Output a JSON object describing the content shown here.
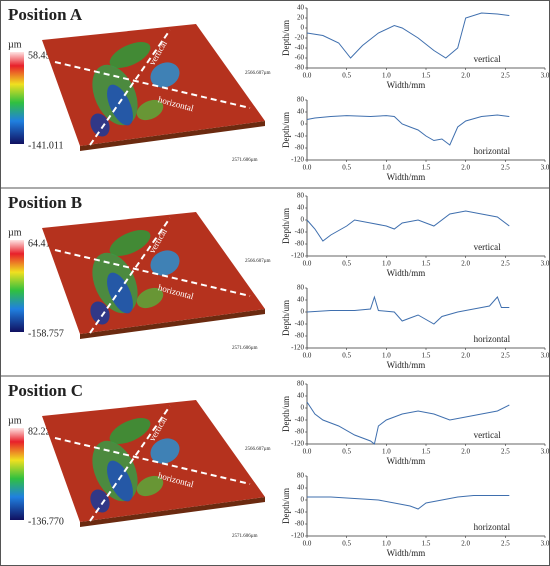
{
  "panels": [
    {
      "title": "Position A",
      "colorbar": {
        "unit": "µm",
        "max": "58.459",
        "min": "-141.011"
      },
      "surface_labels": [
        "2566.607µm",
        "2571.606µm"
      ],
      "cut_labels": [
        "vertical",
        "horizontal"
      ]
    },
    {
      "title": "Position B",
      "colorbar": {
        "unit": "µm",
        "max": "64.416",
        "min": "-158.757"
      },
      "surface_labels": [
        "2566.607µm",
        "2571.606µm"
      ],
      "cut_labels": [
        "vertical",
        "horizontal"
      ]
    },
    {
      "title": "Position C",
      "colorbar": {
        "unit": "µm",
        "max": "82.223",
        "min": "-136.770"
      },
      "surface_labels": [
        "2566.607µm",
        "2571.606µm"
      ],
      "cut_labels": [
        "vertical",
        "horizontal"
      ]
    }
  ],
  "chart_data": [
    {
      "type": "line",
      "annotation": "vertical",
      "xlabel": "Width/mm",
      "ylabel": "Depth/um",
      "color": "#3f6fae",
      "x": [
        0,
        0.2,
        0.4,
        0.55,
        0.7,
        0.9,
        1.1,
        1.2,
        1.4,
        1.6,
        1.75,
        1.9,
        2.0,
        2.2,
        2.4,
        2.55
      ],
      "values": [
        -10,
        -15,
        -30,
        -60,
        -35,
        -10,
        5,
        0,
        -20,
        -45,
        -60,
        -40,
        20,
        30,
        28,
        25
      ],
      "xlim": [
        0,
        3
      ],
      "xticks": [
        {
          "value": 0,
          "label": "0.0"
        },
        {
          "value": 0.5,
          "label": "0.5"
        },
        {
          "value": 1,
          "label": "1.0"
        },
        {
          "value": 1.5,
          "label": "1.5"
        },
        {
          "value": 2,
          "label": "2.0"
        },
        {
          "value": 2.5,
          "label": "2.5"
        },
        {
          "value": 3,
          "label": "3.0"
        }
      ],
      "ylim": [
        -80,
        40
      ],
      "yticks": [
        40,
        20,
        0,
        -20,
        -40,
        -60,
        -80
      ]
    },
    {
      "type": "line",
      "annotation": "horizontal",
      "xlabel": "Width/mm",
      "ylabel": "Depth/um",
      "color": "#3f6fae",
      "x": [
        0,
        0.1,
        0.3,
        0.5,
        0.8,
        1.0,
        1.1,
        1.2,
        1.3,
        1.4,
        1.5,
        1.6,
        1.7,
        1.8,
        1.9,
        2.0,
        2.2,
        2.4,
        2.55
      ],
      "values": [
        15,
        20,
        25,
        28,
        25,
        28,
        25,
        0,
        -10,
        -20,
        -40,
        -55,
        -50,
        -70,
        -10,
        10,
        25,
        30,
        25
      ],
      "xlim": [
        0,
        3
      ],
      "xticks": [
        {
          "value": 0,
          "label": "0.0"
        },
        {
          "value": 0.5,
          "label": "0.5"
        },
        {
          "value": 1,
          "label": "1.0"
        },
        {
          "value": 1.5,
          "label": "1.5"
        },
        {
          "value": 2,
          "label": "2.0"
        },
        {
          "value": 2.5,
          "label": "2.5"
        },
        {
          "value": 3,
          "label": "3.0"
        }
      ],
      "ylim": [
        -120,
        80
      ],
      "yticks": [
        80,
        40,
        0,
        -40,
        -80,
        -120
      ]
    },
    {
      "type": "line",
      "annotation": "vertical",
      "xlabel": "Width/mm",
      "ylabel": "Depth/um",
      "color": "#3f6fae",
      "x": [
        0,
        0.1,
        0.2,
        0.3,
        0.5,
        0.6,
        0.8,
        1.0,
        1.1,
        1.2,
        1.4,
        1.6,
        1.8,
        2.0,
        2.2,
        2.4,
        2.55
      ],
      "values": [
        0,
        -30,
        -70,
        -50,
        -20,
        0,
        -10,
        -20,
        -30,
        -10,
        0,
        -20,
        20,
        30,
        20,
        10,
        -20
      ],
      "xlim": [
        0,
        3
      ],
      "xticks": [
        {
          "value": 0,
          "label": "0.0"
        },
        {
          "value": 0.5,
          "label": "0.5"
        },
        {
          "value": 1,
          "label": "1.0"
        },
        {
          "value": 1.5,
          "label": "1.5"
        },
        {
          "value": 2,
          "label": "2.0"
        },
        {
          "value": 2.5,
          "label": "2.5"
        },
        {
          "value": 3,
          "label": "3.0"
        }
      ],
      "ylim": [
        -120,
        80
      ],
      "yticks": [
        80,
        40,
        0,
        -40,
        -80,
        -120
      ]
    },
    {
      "type": "line",
      "annotation": "horizontal",
      "xlabel": "Width/mm",
      "ylabel": "Depth/um",
      "color": "#3f6fae",
      "x": [
        0,
        0.3,
        0.6,
        0.8,
        0.85,
        0.9,
        1.1,
        1.2,
        1.3,
        1.4,
        1.6,
        1.7,
        1.9,
        2.1,
        2.3,
        2.4,
        2.45,
        2.55
      ],
      "values": [
        0,
        5,
        5,
        10,
        50,
        5,
        0,
        -30,
        -20,
        -10,
        -40,
        -15,
        0,
        10,
        20,
        50,
        15,
        15
      ],
      "xlim": [
        0,
        3
      ],
      "xticks": [
        {
          "value": 0,
          "label": "0.0"
        },
        {
          "value": 0.5,
          "label": "0.5"
        },
        {
          "value": 1,
          "label": "1.0"
        },
        {
          "value": 1.5,
          "label": "1.5"
        },
        {
          "value": 2,
          "label": "2.0"
        },
        {
          "value": 2.5,
          "label": "2.5"
        },
        {
          "value": 3,
          "label": "3.0"
        }
      ],
      "ylim": [
        -120,
        80
      ],
      "yticks": [
        80,
        40,
        0,
        -40,
        -80,
        -120
      ]
    },
    {
      "type": "line",
      "annotation": "vertical",
      "xlabel": "Width/mm",
      "ylabel": "Depth/um",
      "color": "#3f6fae",
      "x": [
        0,
        0.1,
        0.2,
        0.4,
        0.6,
        0.8,
        0.85,
        0.9,
        1.0,
        1.2,
        1.4,
        1.6,
        1.8,
        2.0,
        2.2,
        2.4,
        2.55
      ],
      "values": [
        20,
        -20,
        -40,
        -60,
        -90,
        -110,
        -120,
        -60,
        -40,
        -20,
        -10,
        -20,
        -40,
        -30,
        -20,
        -10,
        10
      ],
      "xlim": [
        0,
        3
      ],
      "xticks": [
        {
          "value": 0,
          "label": "0.0"
        },
        {
          "value": 0.5,
          "label": "0.5"
        },
        {
          "value": 1,
          "label": "1.0"
        },
        {
          "value": 1.5,
          "label": "1.5"
        },
        {
          "value": 2,
          "label": "2.0"
        },
        {
          "value": 2.5,
          "label": "2.5"
        },
        {
          "value": 3,
          "label": "3.0"
        }
      ],
      "ylim": [
        -120,
        80
      ],
      "yticks": [
        80,
        40,
        0,
        -40,
        -80,
        -120
      ]
    },
    {
      "type": "line",
      "annotation": "horizontal",
      "xlabel": "Width/mm",
      "ylabel": "Depth/um",
      "color": "#3f6fae",
      "x": [
        0,
        0.3,
        0.6,
        0.9,
        1.1,
        1.3,
        1.4,
        1.5,
        1.7,
        1.9,
        2.1,
        2.3,
        2.55
      ],
      "values": [
        10,
        10,
        5,
        0,
        -10,
        -20,
        -30,
        -10,
        0,
        10,
        15,
        15,
        15
      ],
      "xlim": [
        0,
        3
      ],
      "xticks": [
        {
          "value": 0,
          "label": "0.0"
        },
        {
          "value": 0.5,
          "label": "0.5"
        },
        {
          "value": 1,
          "label": "1.0"
        },
        {
          "value": 1.5,
          "label": "1.5"
        },
        {
          "value": 2,
          "label": "2.0"
        },
        {
          "value": 2.5,
          "label": "2.5"
        },
        {
          "value": 3,
          "label": "3.0"
        }
      ],
      "ylim": [
        -120,
        80
      ],
      "yticks": [
        80,
        40,
        0,
        -40,
        -80,
        -120
      ]
    }
  ]
}
